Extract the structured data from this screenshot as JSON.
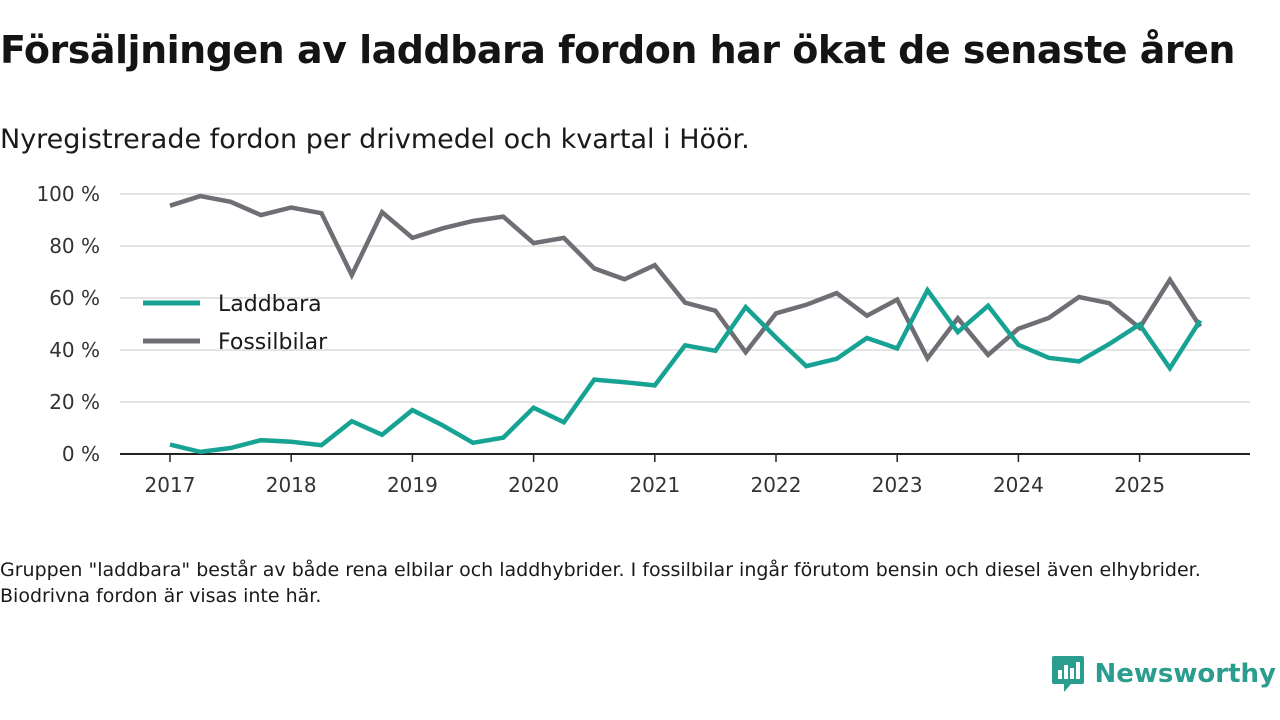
{
  "title": "Försäljningen av laddbara fordon har ökat de senaste åren",
  "subtitle": "Nyregistrerade fordon per drivmedel och kvartal i Höör.",
  "note": "Gruppen \"laddbara\" består av både rena elbilar och laddhybrider. I fossilbilar ingår förutom bensin och diesel även elhybrider. Biodrivna fordon är visas inte här.",
  "brand": {
    "name": "Newsworthy",
    "icon": "newsworthy-logo-icon"
  },
  "colors": {
    "laddbara": "#16a394",
    "fossil": "#6f6e74",
    "grid": "#dcdcdc",
    "axis": "#222222",
    "brand": "#2a9d8f"
  },
  "chart_data": {
    "type": "line",
    "title": "Försäljningen av laddbara fordon har ökat de senaste åren",
    "xlabel": "",
    "ylabel": "",
    "ylim": [
      0,
      100
    ],
    "yticks": [
      0,
      20,
      40,
      60,
      80,
      100
    ],
    "yticklabels": [
      "0 %",
      "20 %",
      "40 %",
      "60 %",
      "80 %",
      "100 %"
    ],
    "xticks": [
      2017,
      2018,
      2019,
      2020,
      2021,
      2022,
      2023,
      2024,
      2025
    ],
    "xticklabels": [
      "2017",
      "2018",
      "2019",
      "2020",
      "2021",
      "2022",
      "2023",
      "2024",
      "2025"
    ],
    "legend_position": "left",
    "x": [
      "2017Q1",
      "2017Q2",
      "2017Q3",
      "2017Q4",
      "2018Q1",
      "2018Q2",
      "2018Q3",
      "2018Q4",
      "2019Q1",
      "2019Q2",
      "2019Q3",
      "2019Q4",
      "2020Q1",
      "2020Q2",
      "2020Q3",
      "2020Q4",
      "2021Q1",
      "2021Q2",
      "2021Q3",
      "2021Q4",
      "2022Q1",
      "2022Q2",
      "2022Q3",
      "2022Q4",
      "2023Q1",
      "2023Q2",
      "2023Q3",
      "2023Q4",
      "2024Q1",
      "2024Q2",
      "2024Q3",
      "2024Q4",
      "2025Q1",
      "2025Q2",
      "2025Q3"
    ],
    "series": [
      {
        "name": "Laddbara",
        "color": "#16a394",
        "values": [
          3.6,
          0.8,
          2.3,
          5.3,
          4.7,
          3.4,
          12.6,
          7.4,
          16.9,
          11.0,
          4.3,
          6.3,
          17.8,
          12.2,
          28.6,
          27.6,
          26.4,
          41.8,
          39.7,
          56.5,
          44.8,
          33.8,
          36.6,
          44.6,
          40.6,
          63.0,
          46.9,
          57.0,
          42.0,
          37.0,
          35.6,
          42.3,
          49.8,
          33.0,
          51.4
        ]
      },
      {
        "name": "Fossilbilar",
        "color": "#6f6e74",
        "values": [
          95.5,
          99.2,
          97.0,
          91.9,
          94.8,
          92.6,
          68.8,
          93.0,
          83.1,
          86.8,
          89.6,
          91.3,
          81.1,
          83.1,
          71.4,
          67.2,
          72.6,
          58.2,
          55.1,
          39.1,
          54.1,
          57.4,
          61.9,
          53.2,
          59.4,
          36.8,
          52.2,
          38.1,
          48.2,
          52.3,
          60.4,
          58.0,
          48.5,
          67.0,
          49.0
        ]
      }
    ]
  }
}
